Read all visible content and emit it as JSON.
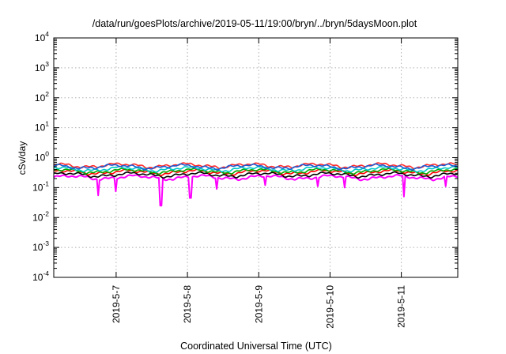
{
  "chart_data": {
    "type": "line",
    "title": "/data/run/goesPlots/archive/2019-05-11/19:00/bryn/../bryn/5daysMoon.plot",
    "xlabel": "Coordinated Universal Time (UTC)",
    "ylabel": "cSv/day",
    "yscale": "log",
    "ylim": [
      0.0001,
      10000
    ],
    "xlim": [
      "2019-05-06T03:00",
      "2019-05-11T19:00"
    ],
    "grid": true,
    "x_ticks": [
      "2019-5-7",
      "2019-5-8",
      "2019-5-9",
      "2019-5-10",
      "2019-5-11"
    ],
    "y_ticks": [
      {
        "base": "10",
        "exp": "4"
      },
      {
        "base": "10",
        "exp": "3"
      },
      {
        "base": "10",
        "exp": "2"
      },
      {
        "base": "10",
        "exp": "1"
      },
      {
        "base": "10",
        "exp": "0"
      },
      {
        "base": "10",
        "exp": "-1"
      },
      {
        "base": "10",
        "exp": "-2"
      },
      {
        "base": "10",
        "exp": "-3"
      },
      {
        "base": "10",
        "exp": "-4"
      }
    ],
    "series": [
      {
        "color": "#ff00ff",
        "base": 0.22,
        "dips": [
          {
            "x": "2019-05-06T18:00",
            "y": 0.055
          },
          {
            "x": "2019-05-07T00:00",
            "y": 0.075
          },
          {
            "x": "2019-05-07T15:00",
            "y": 0.025
          },
          {
            "x": "2019-05-08T01:00",
            "y": 0.045
          },
          {
            "x": "2019-05-08T10:00",
            "y": 0.09
          },
          {
            "x": "2019-05-09T02:00",
            "y": 0.12
          },
          {
            "x": "2019-05-09T20:00",
            "y": 0.11
          },
          {
            "x": "2019-05-10T05:00",
            "y": 0.1
          },
          {
            "x": "2019-05-11T01:00",
            "y": 0.05
          },
          {
            "x": "2019-05-11T15:00",
            "y": 0.11
          }
        ]
      },
      {
        "color": "#000000",
        "base": 0.27,
        "dips": []
      },
      {
        "color": "#ff0000",
        "base": 0.33,
        "dips": []
      },
      {
        "color": "#00aa00",
        "base": 0.36,
        "dips": []
      },
      {
        "color": "#00c8c8",
        "base": 0.42,
        "dips": []
      },
      {
        "color": "#ff2a2a",
        "base": 0.55,
        "dips": []
      },
      {
        "color": "#1e5ad2",
        "base": 0.5,
        "dips": []
      }
    ]
  }
}
